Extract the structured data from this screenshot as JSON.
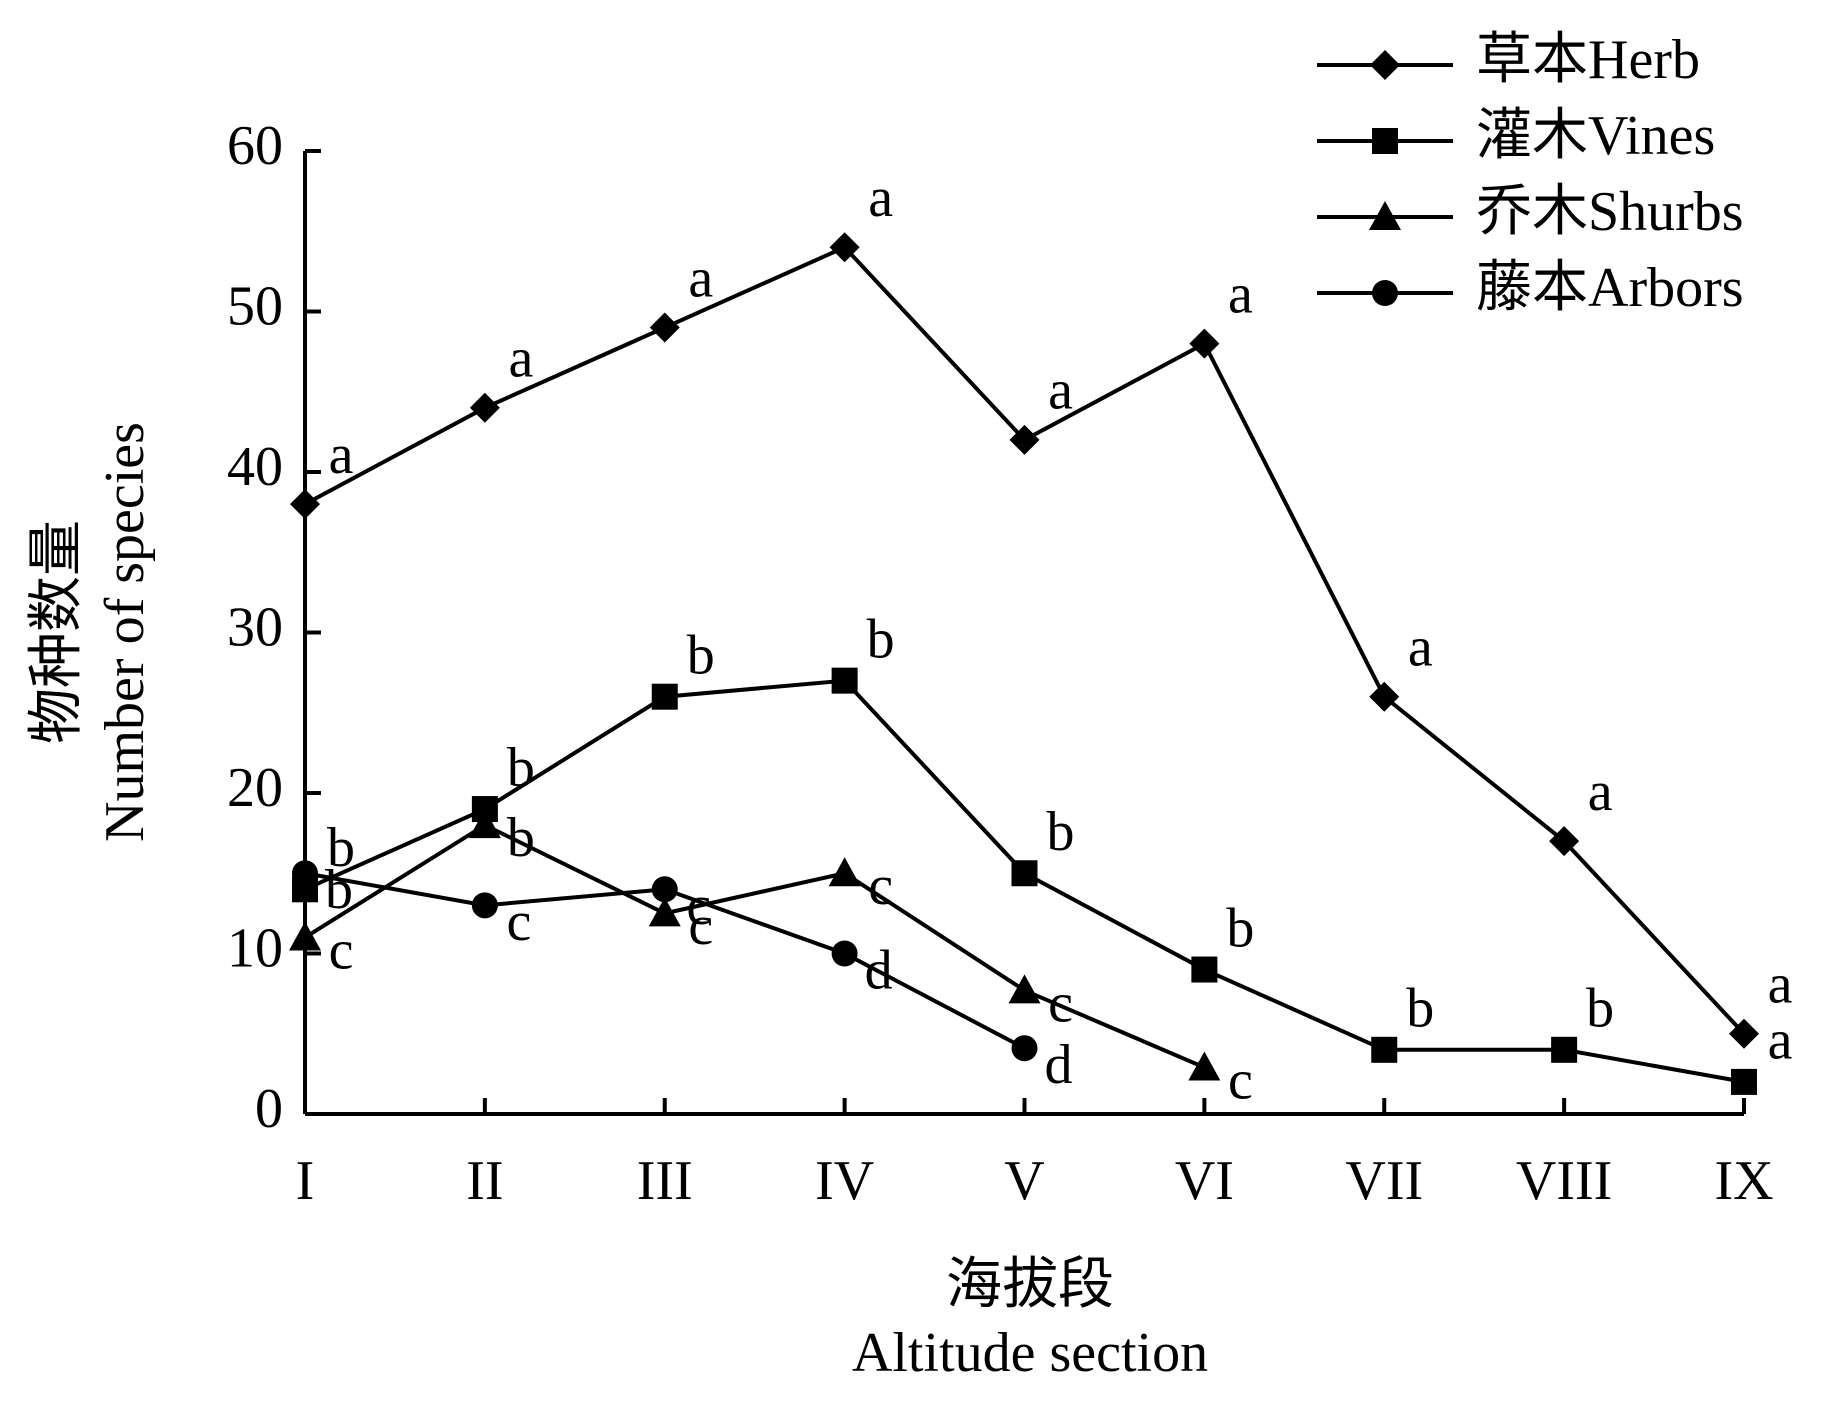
{
  "chart_data": {
    "type": "line",
    "xlabel": [
      "海拔段",
      "Altitude section"
    ],
    "ylabel": [
      "物种数量",
      "Number of species"
    ],
    "categories": [
      "I",
      "II",
      "III",
      "IV",
      "V",
      "VI",
      "VII",
      "VIII",
      "IX"
    ],
    "ylim": [
      0,
      60
    ],
    "yticks": [
      0,
      10,
      20,
      30,
      40,
      50,
      60
    ],
    "legend": "top-right",
    "series": [
      {
        "name": "草本Herb",
        "color": "#000000",
        "marker": "diamond",
        "values": [
          38,
          44,
          49,
          54,
          42,
          48,
          26,
          17,
          5
        ],
        "letters": [
          "a",
          "a",
          "a",
          "a",
          "a",
          "a",
          "a",
          "a",
          "a"
        ]
      },
      {
        "name": "灌木Vines",
        "color": "#000000",
        "marker": "square",
        "values": [
          14,
          19,
          26,
          27,
          15,
          9,
          4,
          4,
          2
        ],
        "letters": [
          "b",
          "b",
          "b",
          "b",
          "b",
          "b",
          "b",
          "b",
          "a"
        ]
      },
      {
        "name": "乔木Shurbs",
        "color": "#000000",
        "marker": "triangle",
        "values": [
          11,
          18,
          12.5,
          15,
          7.7,
          2.9,
          null,
          null,
          null
        ],
        "letters": [
          "c",
          "b",
          "c",
          "c",
          "c",
          "c",
          null,
          null,
          null
        ]
      },
      {
        "name": "藤本Arbors",
        "color": "#000000",
        "marker": "circle",
        "values": [
          15,
          13,
          14,
          10,
          4.1,
          null,
          null,
          null,
          null
        ],
        "letters": [
          "b",
          "c",
          "c",
          "d",
          "d",
          null,
          null,
          null,
          null
        ]
      }
    ]
  }
}
